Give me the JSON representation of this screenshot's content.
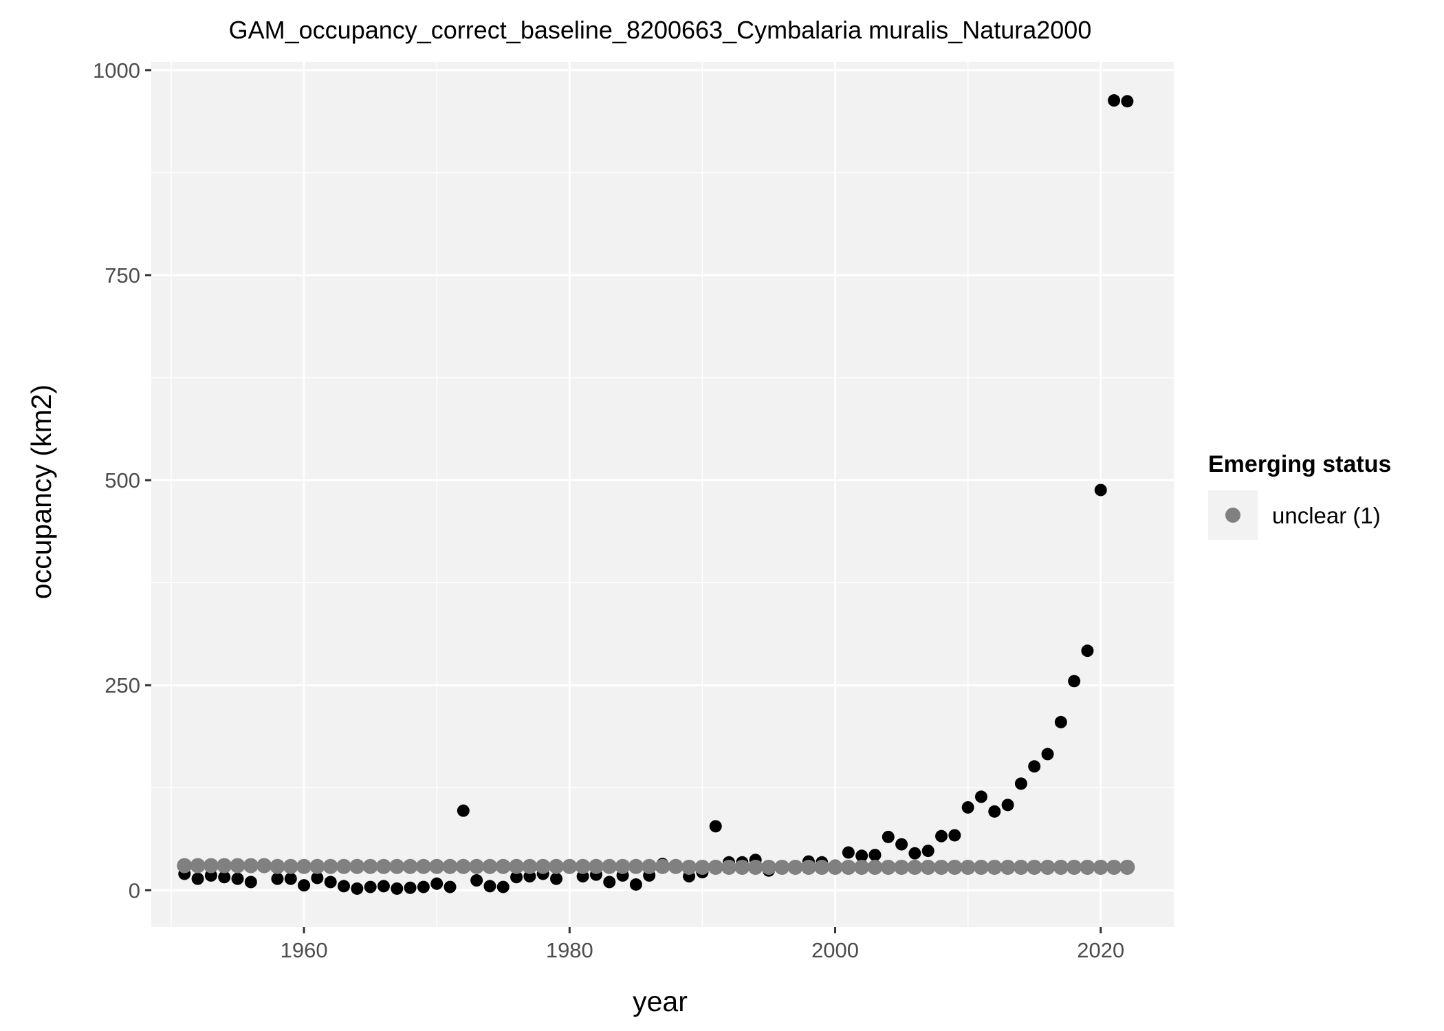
{
  "chart_data": {
    "type": "scatter",
    "title": "GAM_occupancy_correct_baseline_8200663_Cymbalaria muralis_Natura2000",
    "xlabel": "year",
    "ylabel": "occupancy (km2)",
    "xlim": [
      1948.5,
      2025.5
    ],
    "ylim": [
      -45,
      1010
    ],
    "x_ticks": [
      1960,
      1980,
      2000,
      2020
    ],
    "y_ticks": [
      0,
      250,
      500,
      750,
      1000
    ],
    "grid": true,
    "legend": {
      "title": "Emerging status",
      "position": "right",
      "entries": [
        {
          "label": "unclear (1)",
          "color": "#808080"
        }
      ]
    },
    "colors": {
      "panel_background": "#f2f2f2",
      "grid": "#ffffff",
      "observed": "#000000",
      "fitted": "#808080"
    },
    "series": [
      {
        "role": "observed",
        "x": [
          1951,
          1952,
          1953,
          1954,
          1955,
          1956,
          1958,
          1959,
          1960,
          1961,
          1962,
          1963,
          1964,
          1965,
          1966,
          1967,
          1968,
          1969,
          1970,
          1971,
          1972,
          1973,
          1974,
          1975,
          1976,
          1977,
          1978,
          1979,
          1981,
          1982,
          1983,
          1984,
          1985,
          1986,
          1987,
          1989,
          1990,
          1991,
          1992,
          1993,
          1994,
          1995,
          1998,
          1999,
          2000,
          2001,
          2002,
          2003,
          2004,
          2005,
          2006,
          2007,
          2008,
          2009,
          2010,
          2011,
          2012,
          2013,
          2014,
          2015,
          2016,
          2017,
          2018,
          2019,
          2020,
          2021,
          2022
        ],
        "y": [
          20,
          14,
          18,
          16,
          14,
          10,
          14,
          14,
          6,
          15,
          10,
          5,
          2,
          4,
          5,
          2,
          3,
          4,
          8,
          4,
          97,
          12,
          5,
          4,
          16,
          17,
          20,
          14,
          17,
          19,
          10,
          18,
          7,
          18,
          32,
          17,
          22,
          78,
          34,
          34,
          37,
          24,
          35,
          34,
          30,
          46,
          42,
          43,
          65,
          56,
          45,
          48,
          66,
          67,
          101,
          114,
          96,
          104,
          130,
          151,
          166,
          205,
          255,
          292,
          488,
          963,
          962
        ]
      },
      {
        "role": "fitted",
        "x": [
          1951,
          1952,
          1953,
          1954,
          1955,
          1956,
          1957,
          1958,
          1959,
          1960,
          1961,
          1962,
          1963,
          1964,
          1965,
          1966,
          1967,
          1968,
          1969,
          1970,
          1971,
          1972,
          1973,
          1974,
          1975,
          1976,
          1977,
          1978,
          1979,
          1980,
          1981,
          1982,
          1983,
          1984,
          1985,
          1986,
          1987,
          1988,
          1989,
          1990,
          1991,
          1992,
          1993,
          1994,
          1995,
          1996,
          1997,
          1998,
          1999,
          2000,
          2001,
          2002,
          2003,
          2004,
          2005,
          2006,
          2007,
          2008,
          2009,
          2010,
          2011,
          2012,
          2013,
          2014,
          2015,
          2016,
          2017,
          2018,
          2019,
          2020,
          2021,
          2022
        ],
        "y": [
          30,
          30,
          30,
          30,
          30,
          30,
          30,
          29,
          29,
          29,
          29,
          29,
          29,
          29,
          29,
          29,
          29,
          29,
          29,
          29,
          29,
          29,
          29,
          29,
          29,
          29,
          29,
          29,
          29,
          29,
          29,
          29,
          29,
          29,
          29,
          29,
          29,
          29,
          28,
          28,
          28,
          28,
          28,
          28,
          28,
          28,
          28,
          28,
          28,
          28,
          28,
          28,
          28,
          28,
          28,
          28,
          28,
          28,
          28,
          28,
          28,
          28,
          28,
          28,
          28,
          28,
          28,
          28,
          28,
          28,
          28,
          28
        ]
      }
    ]
  }
}
